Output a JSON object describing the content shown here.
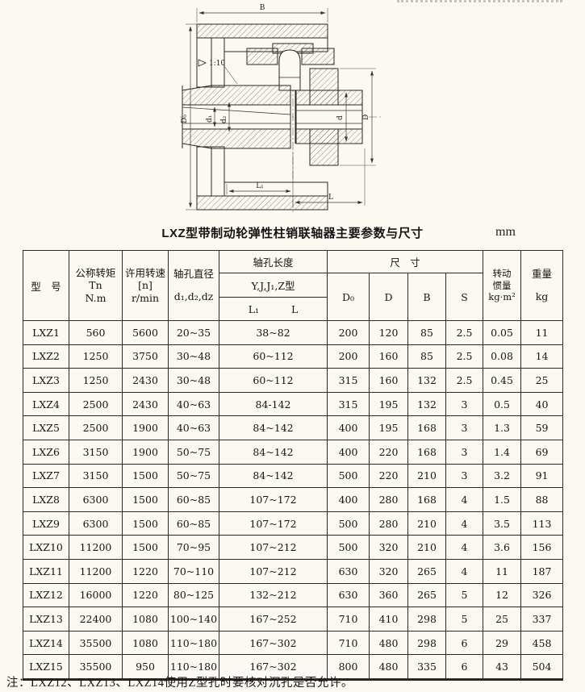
{
  "page": {
    "title": "LXZ型带制动轮弹性柱销联轴器主要参数与尺寸",
    "unit": "mm",
    "note": "注：LXZ12、LXZ13、LXZ14使用Z型孔时要核对沉孔是否允许。"
  },
  "drawing": {
    "labels": {
      "b": "B",
      "d0": "D₀",
      "d1": "d₁",
      "d2": "d₂",
      "d_small": "d",
      "d_big": "D",
      "l1": "L₁",
      "l": "L",
      "taper": "1:10"
    }
  },
  "table": {
    "headers": {
      "model": "型　号",
      "torque_l1": "公称转矩Tn",
      "torque_l2": "N.m",
      "speed_l1": "许用转速",
      "speed_l2": "[n]",
      "speed_l3": "r/min",
      "bore_l1": "轴孔直径",
      "bore_l2": "d₁,d₂,dz",
      "length_group": "轴孔长度",
      "length_types": "Y,J,J₁,Z型",
      "length_l1": "L₁",
      "length_l": "L",
      "size_group": "尺　寸",
      "size_d0": "D₀",
      "size_d": "D",
      "size_b": "B",
      "size_s": "S",
      "inertia_l1": "转动",
      "inertia_l2": "惯量",
      "inertia_l3": "kg·m²",
      "weight_l1": "重量",
      "weight_l2": "kg"
    },
    "rows": [
      [
        "LXZ1",
        "560",
        "5600",
        "20~35",
        "38~82",
        "200",
        "120",
        "85",
        "2.5",
        "0.05",
        "11"
      ],
      [
        "LXZ2",
        "1250",
        "3750",
        "30~48",
        "60~112",
        "200",
        "160",
        "85",
        "2.5",
        "0.08",
        "14"
      ],
      [
        "LXZ3",
        "1250",
        "2430",
        "30~48",
        "60~112",
        "315",
        "160",
        "132",
        "2.5",
        "0.45",
        "25"
      ],
      [
        "LXZ4",
        "2500",
        "2430",
        "40~63",
        "84-142",
        "315",
        "195",
        "132",
        "3",
        "0.5",
        "40"
      ],
      [
        "LXZ5",
        "2500",
        "1900",
        "40~63",
        "84~142",
        "400",
        "195",
        "168",
        "3",
        "1.3",
        "59"
      ],
      [
        "LXZ6",
        "3150",
        "1900",
        "50~75",
        "84~142",
        "400",
        "220",
        "168",
        "3",
        "1.4",
        "69"
      ],
      [
        "LXZ7",
        "3150",
        "1500",
        "50~75",
        "84~142",
        "500",
        "220",
        "210",
        "3",
        "3.2",
        "91"
      ],
      [
        "LXZ8",
        "6300",
        "1500",
        "60~85",
        "107~172",
        "400",
        "280",
        "168",
        "4",
        "1.5",
        "88"
      ],
      [
        "LXZ9",
        "6300",
        "1500",
        "60~85",
        "107~172",
        "500",
        "280",
        "210",
        "4",
        "3.5",
        "113"
      ],
      [
        "LXZ10",
        "11200",
        "1500",
        "70~95",
        "107~212",
        "500",
        "320",
        "210",
        "4",
        "3.6",
        "156"
      ],
      [
        "LXZ11",
        "11200",
        "1220",
        "70~110",
        "107~212",
        "630",
        "320",
        "265",
        "4",
        "11",
        "187"
      ],
      [
        "LXZ12",
        "16000",
        "1220",
        "80~125",
        "132~212",
        "630",
        "360",
        "265",
        "5",
        "12",
        "326"
      ],
      [
        "LXZ13",
        "22400",
        "1080",
        "100~140",
        "167~252",
        "710",
        "410",
        "298",
        "5",
        "25",
        "337"
      ],
      [
        "LXZ14",
        "35500",
        "1080",
        "110~180",
        "167~302",
        "710",
        "480",
        "298",
        "6",
        "29",
        "458"
      ],
      [
        "LXZ15",
        "35500",
        "950",
        "110~180",
        "167~302",
        "800",
        "480",
        "335",
        "6",
        "43",
        "504"
      ]
    ]
  }
}
